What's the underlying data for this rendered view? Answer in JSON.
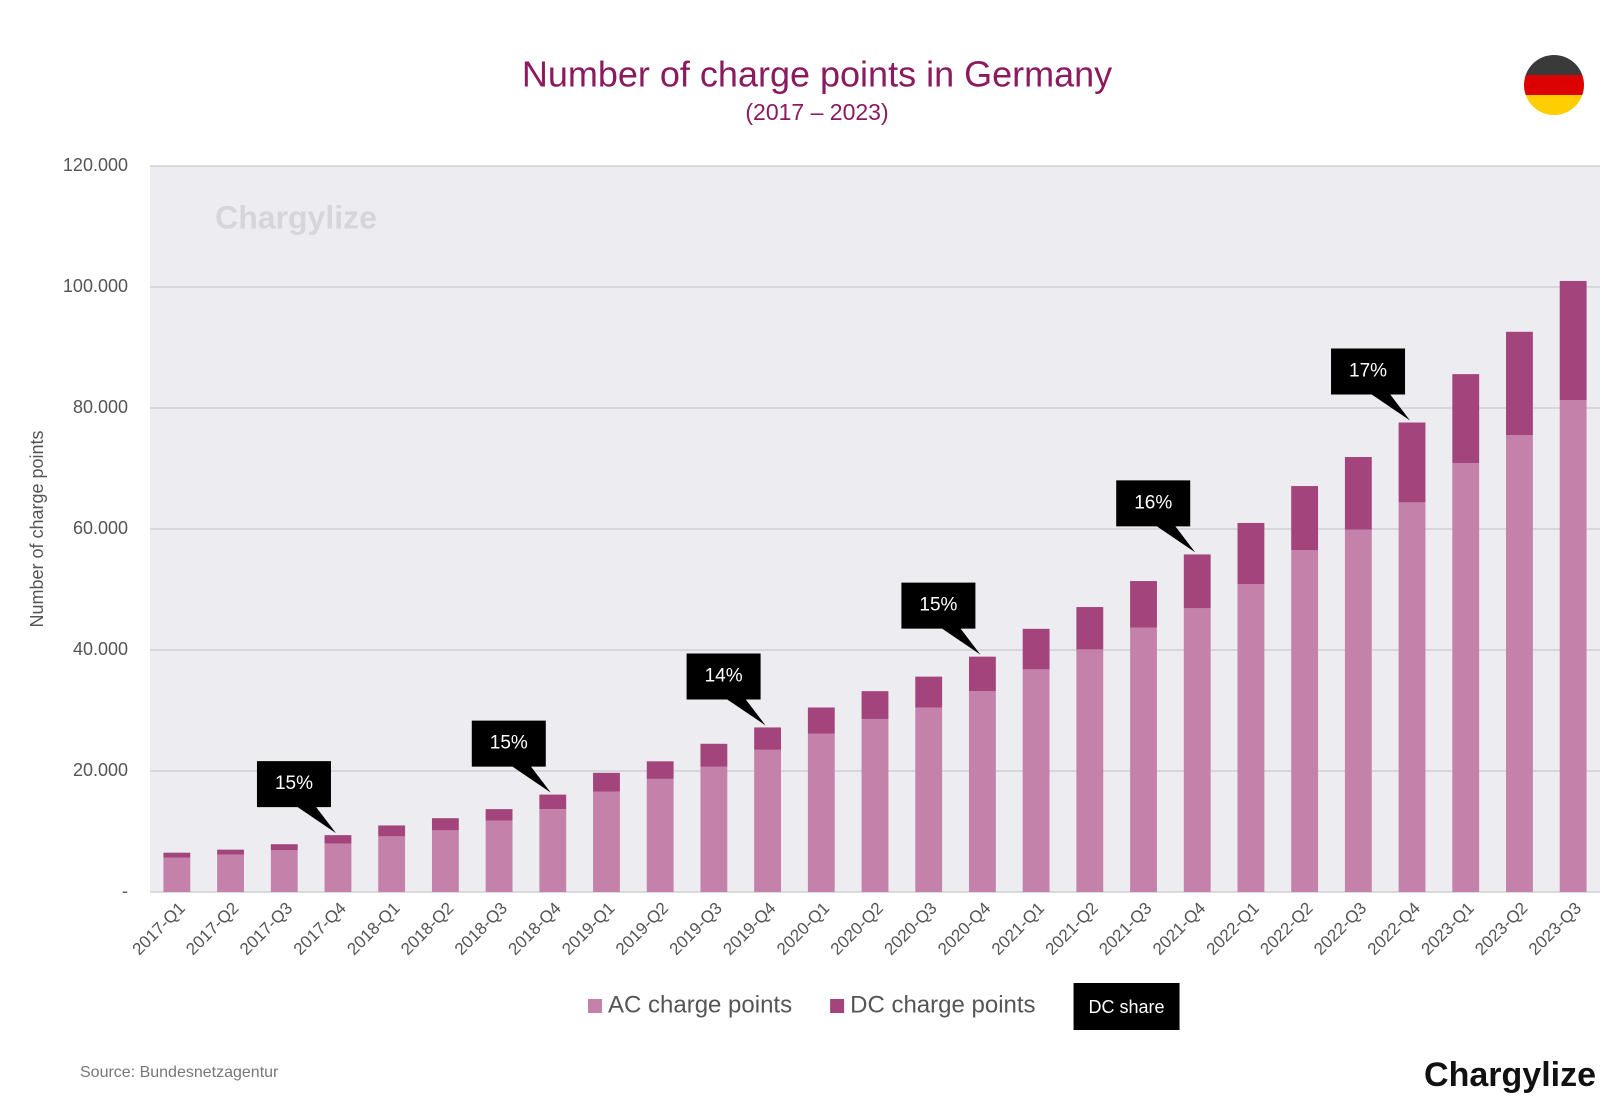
{
  "chart_data": {
    "type": "stacked_bar",
    "title": "Number of charge points in Germany",
    "subtitle": "(2017 – 2023)",
    "y_label": "Number of charge points",
    "watermark": "Chargylize",
    "source": "Source: Bundesnetzagentur",
    "brand": "Chargylize",
    "share_label": "DC share",
    "categories": [
      "2017-Q1",
      "2017-Q2",
      "2017-Q3",
      "2017-Q4",
      "2018-Q1",
      "2018-Q2",
      "2018-Q3",
      "2018-Q4",
      "2019-Q1",
      "2019-Q2",
      "2019-Q3",
      "2019-Q4",
      "2020-Q1",
      "2020-Q2",
      "2020-Q3",
      "2020-Q4",
      "2021-Q1",
      "2021-Q2",
      "2021-Q3",
      "2021-Q4",
      "2022-Q1",
      "2022-Q2",
      "2022-Q3",
      "2022-Q4",
      "2023-Q1",
      "2023-Q2",
      "2023-Q3"
    ],
    "series": [
      {
        "name": "AC charge points",
        "color": "#c482aa",
        "values": [
          5700,
          6200,
          6900,
          8000,
          9200,
          10200,
          11800,
          13700,
          16600,
          18700,
          20700,
          23500,
          26200,
          28600,
          30500,
          33200,
          36800,
          40100,
          43700,
          46900,
          50900,
          56500,
          59900,
          64400,
          70900,
          75500,
          81300
        ]
      },
      {
        "name": "DC charge points",
        "color": "#a3457c",
        "values": [
          800,
          800,
          1000,
          1400,
          1800,
          2000,
          1900,
          2400,
          3100,
          2900,
          3800,
          3700,
          4300,
          4600,
          5100,
          5700,
          6700,
          7000,
          7700,
          8900,
          10100,
          10600,
          12000,
          13200,
          14700,
          17100,
          19700
        ]
      }
    ],
    "annotations": [
      {
        "category": "2017-Q4",
        "label": "15%"
      },
      {
        "category": "2018-Q4",
        "label": "15%"
      },
      {
        "category": "2019-Q4",
        "label": "14%"
      },
      {
        "category": "2020-Q4",
        "label": "15%"
      },
      {
        "category": "2021-Q4",
        "label": "16%"
      },
      {
        "category": "2022-Q4",
        "label": "17%"
      }
    ],
    "ylim": [
      0,
      120000
    ],
    "yticks": [
      {
        "value": 0,
        "label": "-"
      },
      {
        "value": 20000,
        "label": "20.000"
      },
      {
        "value": 40000,
        "label": "40.000"
      },
      {
        "value": 60000,
        "label": "60.000"
      },
      {
        "value": 80000,
        "label": "80.000"
      },
      {
        "value": 100000,
        "label": "100.000"
      },
      {
        "value": 120000,
        "label": "120.000"
      }
    ],
    "grid": true
  }
}
